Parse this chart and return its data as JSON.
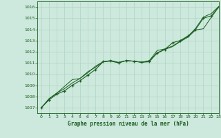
{
  "title": "Graphe pression niveau de la mer (hPa)",
  "bg_color": "#cde8dc",
  "grid_color": "#b0d4c4",
  "line_color": "#1a5e20",
  "text_color": "#1a5e20",
  "xlim": [
    -0.5,
    23
  ],
  "ylim": [
    1006.5,
    1016.5
  ],
  "xticks": [
    0,
    1,
    2,
    3,
    4,
    5,
    6,
    7,
    8,
    9,
    10,
    11,
    12,
    13,
    14,
    15,
    16,
    17,
    18,
    19,
    20,
    21,
    22,
    23
  ],
  "yticks": [
    1007,
    1008,
    1009,
    1010,
    1011,
    1012,
    1013,
    1014,
    1015,
    1016
  ],
  "series": [
    [
      1007.0,
      1007.7,
      1008.2,
      1008.5,
      1009.0,
      1009.4,
      1009.9,
      1010.4,
      1011.1,
      1011.2,
      1011.0,
      1011.2,
      1011.15,
      1011.05,
      1011.1,
      1011.9,
      1012.2,
      1012.8,
      1013.0,
      1013.4,
      1014.0,
      1015.0,
      1015.2,
      1016.0
    ],
    [
      1007.0,
      1007.8,
      1008.3,
      1008.7,
      1009.2,
      1009.6,
      1010.1,
      1010.7,
      1011.1,
      1011.2,
      1011.05,
      1011.2,
      1011.15,
      1011.05,
      1011.2,
      1012.1,
      1012.25,
      1012.5,
      1012.95,
      1013.35,
      1014.1,
      1015.1,
      1015.4,
      1016.05
    ],
    [
      1007.0,
      1007.8,
      1008.3,
      1008.9,
      1009.5,
      1009.6,
      1010.2,
      1010.6,
      1011.1,
      1011.15,
      1011.0,
      1011.2,
      1011.15,
      1011.05,
      1011.2,
      1011.85,
      1012.2,
      1012.45,
      1012.9,
      1013.3,
      1013.95,
      1014.05,
      1015.05,
      1016.0
    ]
  ]
}
